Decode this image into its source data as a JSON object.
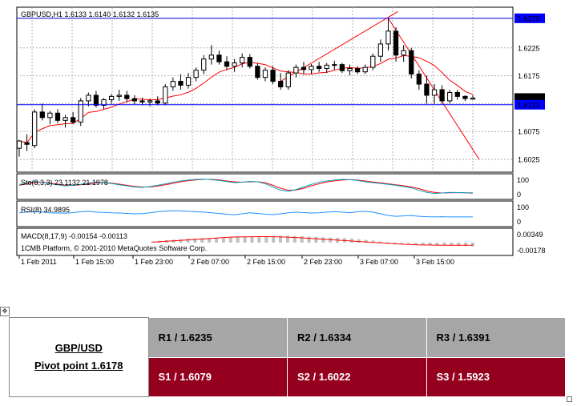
{
  "chart": {
    "title": "GBPUSD,H1  1.6133 1.6140 1.6132 1.6135",
    "price_axis_labels": [
      "1.6278",
      "1.6225",
      "1.6175",
      "1.6135",
      "1.6123",
      "1.6075",
      "1.6025"
    ],
    "stoch": {
      "label": "Sto(8,3,3) 23.1132 21.1978",
      "scale": [
        "100",
        "0"
      ]
    },
    "rsi": {
      "label": "RSI(8) 34.9895",
      "scale": [
        "100",
        "0"
      ]
    },
    "macd": {
      "label": "MACD(8,17,9) -0.00154 -0.00113",
      "scale": [
        "0.00349",
        "-0.00178"
      ]
    },
    "copyright": "1CMB Platform, © 2001-2010 MetaQuotes Software Corp.",
    "time_labels": [
      "1 Feb 2011",
      "1 Feb 15:00",
      "1 Feb 23:00",
      "2 Feb 07:00",
      "2 Feb 15:00",
      "2 Feb 23:00",
      "3 Feb 07:00",
      "3 Feb 15:00"
    ],
    "colors": {
      "bull": "#ffffff",
      "bear": "#000000",
      "ma": "#ff0000",
      "hline": "#0000ff",
      "stoch_k": "#00a0c0",
      "stoch_d": "#ff0000",
      "rsi": "#1e90ff",
      "macd_hist": "#c0c0c0",
      "macd_signal": "#ff0000",
      "label_bg": "#0000ff"
    }
  },
  "chart_data": {
    "type": "candlestick",
    "title": "GBPUSD,H1",
    "symbol": "GBPUSD",
    "timeframe": "H1",
    "last_ohlc": {
      "open": 1.6133,
      "high": 1.614,
      "low": 1.6132,
      "close": 1.6135
    },
    "ylim": [
      1.6005,
      1.6295
    ],
    "candles": [
      {
        "o": 1.6045,
        "h": 1.606,
        "l": 1.603,
        "c": 1.6058
      },
      {
        "o": 1.6055,
        "h": 1.607,
        "l": 1.604,
        "c": 1.6052
      },
      {
        "o": 1.605,
        "h": 1.6115,
        "l": 1.6045,
        "c": 1.611
      },
      {
        "o": 1.611,
        "h": 1.6125,
        "l": 1.6095,
        "c": 1.61
      },
      {
        "o": 1.61,
        "h": 1.6112,
        "l": 1.6088,
        "c": 1.6108
      },
      {
        "o": 1.6108,
        "h": 1.6115,
        "l": 1.609,
        "c": 1.6095
      },
      {
        "o": 1.6095,
        "h": 1.6105,
        "l": 1.6082,
        "c": 1.61
      },
      {
        "o": 1.61,
        "h": 1.611,
        "l": 1.6088,
        "c": 1.6092
      },
      {
        "o": 1.6092,
        "h": 1.6135,
        "l": 1.6085,
        "c": 1.613
      },
      {
        "o": 1.613,
        "h": 1.6145,
        "l": 1.612,
        "c": 1.614
      },
      {
        "o": 1.614,
        "h": 1.6148,
        "l": 1.6118,
        "c": 1.6122
      },
      {
        "o": 1.6122,
        "h": 1.6135,
        "l": 1.6115,
        "c": 1.6132
      },
      {
        "o": 1.6132,
        "h": 1.6142,
        "l": 1.6125,
        "c": 1.6138
      },
      {
        "o": 1.6138,
        "h": 1.615,
        "l": 1.613,
        "c": 1.614
      },
      {
        "o": 1.614,
        "h": 1.6148,
        "l": 1.6128,
        "c": 1.6134
      },
      {
        "o": 1.6134,
        "h": 1.614,
        "l": 1.6124,
        "c": 1.613
      },
      {
        "o": 1.613,
        "h": 1.6136,
        "l": 1.6122,
        "c": 1.6128
      },
      {
        "o": 1.6128,
        "h": 1.6134,
        "l": 1.612,
        "c": 1.613
      },
      {
        "o": 1.613,
        "h": 1.6138,
        "l": 1.6122,
        "c": 1.6126
      },
      {
        "o": 1.6126,
        "h": 1.616,
        "l": 1.6122,
        "c": 1.6155
      },
      {
        "o": 1.6155,
        "h": 1.6172,
        "l": 1.6148,
        "c": 1.6165
      },
      {
        "o": 1.6165,
        "h": 1.6178,
        "l": 1.615,
        "c": 1.6158
      },
      {
        "o": 1.6158,
        "h": 1.618,
        "l": 1.6152,
        "c": 1.6172
      },
      {
        "o": 1.6172,
        "h": 1.619,
        "l": 1.6165,
        "c": 1.6185
      },
      {
        "o": 1.6185,
        "h": 1.6212,
        "l": 1.6178,
        "c": 1.6205
      },
      {
        "o": 1.6205,
        "h": 1.623,
        "l": 1.6195,
        "c": 1.6212
      },
      {
        "o": 1.6212,
        "h": 1.622,
        "l": 1.6195,
        "c": 1.62
      },
      {
        "o": 1.62,
        "h": 1.621,
        "l": 1.6185,
        "c": 1.6192
      },
      {
        "o": 1.6192,
        "h": 1.6205,
        "l": 1.6182,
        "c": 1.6198
      },
      {
        "o": 1.6198,
        "h": 1.6215,
        "l": 1.619,
        "c": 1.6208
      },
      {
        "o": 1.6208,
        "h": 1.6214,
        "l": 1.6188,
        "c": 1.6192
      },
      {
        "o": 1.6192,
        "h": 1.6198,
        "l": 1.6168,
        "c": 1.6172
      },
      {
        "o": 1.6172,
        "h": 1.619,
        "l": 1.6165,
        "c": 1.6185
      },
      {
        "o": 1.6185,
        "h": 1.6192,
        "l": 1.616,
        "c": 1.6165
      },
      {
        "o": 1.6165,
        "h": 1.618,
        "l": 1.615,
        "c": 1.6155
      },
      {
        "o": 1.6155,
        "h": 1.6185,
        "l": 1.615,
        "c": 1.618
      },
      {
        "o": 1.618,
        "h": 1.6195,
        "l": 1.6172,
        "c": 1.619
      },
      {
        "o": 1.619,
        "h": 1.62,
        "l": 1.6178,
        "c": 1.6186
      },
      {
        "o": 1.6186,
        "h": 1.6196,
        "l": 1.6178,
        "c": 1.6192
      },
      {
        "o": 1.6192,
        "h": 1.62,
        "l": 1.6182,
        "c": 1.6188
      },
      {
        "o": 1.6188,
        "h": 1.6198,
        "l": 1.618,
        "c": 1.6194
      },
      {
        "o": 1.6194,
        "h": 1.6202,
        "l": 1.6186,
        "c": 1.6195
      },
      {
        "o": 1.6195,
        "h": 1.6198,
        "l": 1.618,
        "c": 1.6184
      },
      {
        "o": 1.6184,
        "h": 1.6195,
        "l": 1.6176,
        "c": 1.6188
      },
      {
        "o": 1.6188,
        "h": 1.6192,
        "l": 1.6178,
        "c": 1.6182
      },
      {
        "o": 1.6182,
        "h": 1.6195,
        "l": 1.6178,
        "c": 1.619
      },
      {
        "o": 1.619,
        "h": 1.6215,
        "l": 1.6185,
        "c": 1.621
      },
      {
        "o": 1.621,
        "h": 1.624,
        "l": 1.62,
        "c": 1.6232
      },
      {
        "o": 1.6232,
        "h": 1.6278,
        "l": 1.622,
        "c": 1.6255
      },
      {
        "o": 1.6255,
        "h": 1.6262,
        "l": 1.62,
        "c": 1.6212
      },
      {
        "o": 1.6212,
        "h": 1.623,
        "l": 1.62,
        "c": 1.622
      },
      {
        "o": 1.622,
        "h": 1.6225,
        "l": 1.617,
        "c": 1.6178
      },
      {
        "o": 1.6178,
        "h": 1.6185,
        "l": 1.615,
        "c": 1.616
      },
      {
        "o": 1.616,
        "h": 1.6175,
        "l": 1.6125,
        "c": 1.614
      },
      {
        "o": 1.614,
        "h": 1.616,
        "l": 1.6125,
        "c": 1.615
      },
      {
        "o": 1.615,
        "h": 1.6158,
        "l": 1.6125,
        "c": 1.613
      },
      {
        "o": 1.613,
        "h": 1.615,
        "l": 1.6125,
        "c": 1.6145
      },
      {
        "o": 1.6145,
        "h": 1.615,
        "l": 1.6132,
        "c": 1.6138
      },
      {
        "o": 1.6138,
        "h": 1.614,
        "l": 1.613,
        "c": 1.6134
      },
      {
        "o": 1.6133,
        "h": 1.614,
        "l": 1.6132,
        "c": 1.6135
      }
    ],
    "horizontal_lines": [
      1.6278,
      1.6123
    ],
    "stoch_k": [
      60,
      70,
      75,
      72,
      65,
      60,
      55,
      58,
      62,
      68,
      72,
      70,
      66,
      60,
      55,
      50,
      48,
      52,
      58,
      65,
      72,
      78,
      82,
      85,
      86,
      84,
      80,
      75,
      70,
      72,
      76,
      74,
      65,
      50,
      35,
      30,
      38,
      50,
      62,
      72,
      78,
      82,
      85,
      84,
      80,
      74,
      70,
      66,
      62,
      58,
      52,
      46,
      35,
      25,
      20,
      22,
      25,
      24,
      23,
      23.1
    ],
    "stoch_d": [
      58,
      65,
      70,
      72,
      68,
      63,
      58,
      57,
      60,
      64,
      69,
      70,
      68,
      63,
      58,
      53,
      50,
      50,
      54,
      60,
      67,
      74,
      79,
      83,
      85,
      85,
      83,
      78,
      74,
      72,
      74,
      74,
      70,
      58,
      44,
      35,
      36,
      44,
      55,
      65,
      73,
      78,
      82,
      84,
      82,
      78,
      73,
      69,
      65,
      60,
      56,
      50,
      42,
      32,
      25,
      22,
      23,
      24,
      23,
      21.2
    ],
    "rsi": [
      55,
      58,
      60,
      58,
      55,
      54,
      53,
      56,
      60,
      62,
      58,
      57,
      55,
      54,
      52,
      50,
      51,
      55,
      60,
      63,
      65,
      64,
      62,
      60,
      58,
      55,
      52,
      48,
      45,
      50,
      55,
      52,
      48,
      46,
      50,
      55,
      58,
      56,
      54,
      55,
      58,
      60,
      58,
      55,
      60,
      62,
      58,
      50,
      42,
      38,
      40,
      42,
      38,
      36,
      35,
      36,
      35,
      35,
      35,
      34.99
    ],
    "macd_hist": [
      0.0005,
      0.0008,
      0.0011,
      0.0013,
      0.0015,
      0.0017,
      0.0018,
      0.0019,
      0.002,
      0.0021,
      0.0022,
      0.0023,
      0.0024,
      0.0025,
      0.0026,
      0.0027,
      0.0028,
      0.0029,
      0.003,
      0.003,
      0.0029,
      0.0028,
      0.0026,
      0.0024,
      0.0023,
      0.0022,
      0.0021,
      0.002,
      0.0018,
      0.0015,
      0.0012,
      0.0009,
      0.0005,
      0.0002,
      0.0,
      -0.0002,
      -0.0004,
      -0.0006,
      -0.0008,
      -0.001,
      -0.0011,
      -0.0012,
      -0.0013,
      -0.0014,
      -0.0015,
      -0.00154
    ],
    "macd_signal": [
      0.0002,
      0.0004,
      0.0006,
      0.0008,
      0.001,
      0.0012,
      0.0014,
      0.0016,
      0.0018,
      0.002,
      0.0022,
      0.0024,
      0.0025,
      0.00255,
      0.0026,
      0.00262,
      0.00262,
      0.0026,
      0.0025,
      0.0024,
      0.00225,
      0.0021,
      0.0019,
      0.0017,
      0.0015,
      0.0013,
      0.0011,
      0.0009,
      0.0007,
      0.0005,
      0.0003,
      0.0001,
      -0.0001,
      -0.0003,
      -0.0005,
      -0.00065,
      -0.0008,
      -0.0009,
      -0.001,
      -0.00105,
      -0.0011,
      -0.00112,
      -0.00113,
      -0.00113,
      -0.00113,
      -0.00113
    ]
  },
  "pivot": {
    "pair": "GBP/USD",
    "pivot_text": "Pivot point 1.6178",
    "resistance": [
      "R1 / 1.6235",
      "R2 / 1.6334",
      "R3 / 1.6391"
    ],
    "support": [
      "S1 / 1.6079",
      "S2 / 1.6022",
      "S3 / 1.5923"
    ]
  }
}
